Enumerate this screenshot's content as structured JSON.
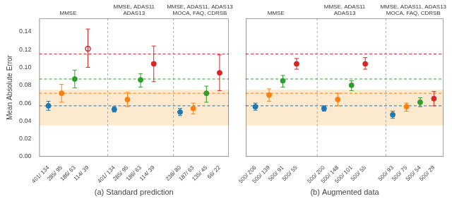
{
  "chart_data": [
    {
      "type": "scatter",
      "xlabel": "(a) Standard prediction",
      "ylabel": "Mean Absolute Error",
      "categories": [
        "401/ 134",
        "285/ 95",
        "186/ 63",
        "114/ 39",
        null,
        "401/ 134",
        "285/ 95",
        "186/ 63",
        "114/ 39",
        null,
        "238/ 80",
        "187/ 63",
        "135/ 45",
        "66/ 22"
      ],
      "group_labels": [
        "MMSE",
        "MMSE, ADAS11\nADAS13",
        "MMSE, ADAS11, ADAS13\nMOCA, FAQ, CDRSB"
      ],
      "series": [
        {
          "color": "#1f77b4",
          "marker": "circle",
          "values": [
            0.057,
            null,
            null,
            null,
            null,
            0.053,
            null,
            null,
            null,
            null,
            0.05,
            null,
            null,
            null
          ],
          "error_low": [
            0.005,
            null,
            null,
            null,
            null,
            0.003,
            null,
            null,
            null,
            null,
            0.004,
            null,
            null,
            null
          ],
          "error_high": [
            0.005,
            null,
            null,
            null,
            null,
            0.003,
            null,
            null,
            null,
            null,
            0.004,
            null,
            null,
            null
          ]
        },
        {
          "color": "#ff7f0e",
          "marker": "circle",
          "values": [
            null,
            0.071,
            null,
            null,
            null,
            null,
            0.064,
            null,
            null,
            null,
            null,
            0.054,
            null,
            null
          ],
          "error_low": [
            null,
            0.01,
            null,
            null,
            null,
            null,
            0.008,
            null,
            null,
            null,
            null,
            0.006,
            null,
            null
          ],
          "error_high": [
            null,
            0.01,
            null,
            null,
            null,
            null,
            0.008,
            null,
            null,
            null,
            null,
            0.006,
            null,
            null
          ]
        },
        {
          "color": "#2ca02c",
          "marker": "circle",
          "values": [
            null,
            null,
            0.087,
            null,
            null,
            null,
            null,
            0.086,
            null,
            null,
            null,
            null,
            0.071,
            null
          ],
          "error_low": [
            null,
            null,
            0.01,
            null,
            null,
            null,
            null,
            0.008,
            null,
            null,
            null,
            null,
            0.01,
            null
          ],
          "error_high": [
            null,
            null,
            0.01,
            null,
            null,
            null,
            null,
            0.007,
            null,
            null,
            null,
            null,
            0.008,
            null
          ]
        },
        {
          "color": "#d62728",
          "marker": "open_circle",
          "values": [
            null,
            null,
            null,
            0.121,
            null,
            null,
            null,
            null,
            null,
            null,
            null,
            null,
            null,
            null
          ],
          "error_low": [
            null,
            null,
            null,
            0.021,
            null,
            null,
            null,
            null,
            null,
            null,
            null,
            null,
            null,
            null
          ],
          "error_high": [
            null,
            null,
            null,
            0.022,
            null,
            null,
            null,
            null,
            null,
            null,
            null,
            null,
            null,
            null
          ]
        },
        {
          "color": "#d62728",
          "marker": "circle",
          "values": [
            null,
            null,
            null,
            null,
            null,
            null,
            null,
            null,
            0.104,
            null,
            null,
            null,
            null,
            0.094
          ],
          "error_low": [
            null,
            null,
            null,
            null,
            null,
            null,
            null,
            null,
            0.02,
            null,
            null,
            null,
            null,
            0.02
          ],
          "error_high": [
            null,
            null,
            null,
            null,
            null,
            null,
            null,
            null,
            0.02,
            null,
            null,
            null,
            null,
            0.02
          ]
        }
      ],
      "band": {
        "from": 0.035,
        "to": 0.075,
        "color": "#fde9ce"
      },
      "reference_lines": [
        {
          "value": 0.057,
          "color": "#1f77b4"
        },
        {
          "value": 0.071,
          "color": "#ff7f0e"
        },
        {
          "value": 0.087,
          "color": "#2ca02c"
        },
        {
          "value": 0.115,
          "color": "#d62728"
        }
      ],
      "ylim": [
        0.0,
        0.155
      ],
      "yticks": [
        {
          "value": 0.0,
          "label": "0.00"
        },
        0.02,
        0.04,
        0.06,
        0.08,
        {
          "value": 0.1,
          "label": "0.10"
        },
        0.12,
        0.14
      ],
      "grid": false
    },
    {
      "type": "scatter",
      "xlabel": "(b) Augmented data",
      "categories": [
        "500/ 206",
        "500/ 139",
        "500/ 91",
        "500/ 55",
        null,
        "500/ 200",
        "500/ 148",
        "500/ 101",
        "500/ 55",
        null,
        "500/ 93",
        "500/ 75",
        "500/ 54",
        "500/ 29"
      ],
      "group_labels": [
        "MMSE",
        "MMSE, ADAS11\nADAS13",
        "MMSE, ADAS11, ADAS13\nMOCA, FAQ, CDRSB"
      ],
      "series": [
        {
          "color": "#1f77b4",
          "marker": "circle",
          "values": [
            0.056,
            null,
            null,
            null,
            null,
            0.054,
            null,
            null,
            null,
            null,
            0.047,
            null,
            null,
            null
          ],
          "error_low": [
            0.004,
            null,
            null,
            null,
            null,
            0.003,
            null,
            null,
            null,
            null,
            0.004,
            null,
            null,
            null
          ],
          "error_high": [
            0.004,
            null,
            null,
            null,
            null,
            0.003,
            null,
            null,
            null,
            null,
            0.004,
            null,
            null,
            null
          ]
        },
        {
          "color": "#ff7f0e",
          "marker": "circle",
          "values": [
            null,
            0.069,
            null,
            null,
            null,
            null,
            0.064,
            null,
            null,
            null,
            null,
            0.056,
            null,
            null
          ],
          "error_low": [
            null,
            0.007,
            null,
            null,
            null,
            null,
            0.007,
            null,
            null,
            null,
            null,
            0.005,
            null,
            null
          ],
          "error_high": [
            null,
            0.007,
            null,
            null,
            null,
            null,
            0.007,
            null,
            null,
            null,
            null,
            0.004,
            null,
            null
          ]
        },
        {
          "color": "#2ca02c",
          "marker": "circle",
          "values": [
            null,
            null,
            0.085,
            null,
            null,
            null,
            null,
            0.08,
            null,
            null,
            null,
            null,
            0.061,
            null
          ],
          "error_low": [
            null,
            null,
            0.007,
            null,
            null,
            null,
            null,
            0.006,
            null,
            null,
            null,
            null,
            0.005,
            null
          ],
          "error_high": [
            null,
            null,
            0.006,
            null,
            null,
            null,
            null,
            0.005,
            null,
            null,
            null,
            null,
            0.005,
            null
          ]
        },
        {
          "color": "#d62728",
          "marker": "circle",
          "values": [
            null,
            null,
            null,
            0.104,
            null,
            null,
            null,
            null,
            0.104,
            null,
            null,
            null,
            null,
            0.065
          ],
          "error_low": [
            null,
            null,
            null,
            0.006,
            null,
            null,
            null,
            null,
            0.006,
            null,
            null,
            null,
            null,
            0.008
          ],
          "error_high": [
            null,
            null,
            null,
            0.006,
            null,
            null,
            null,
            null,
            0.007,
            null,
            null,
            null,
            null,
            0.008
          ]
        }
      ],
      "band": {
        "from": 0.035,
        "to": 0.075,
        "color": "#fde9ce"
      },
      "reference_lines": [
        {
          "value": 0.057,
          "color": "#1f77b4"
        },
        {
          "value": 0.071,
          "color": "#ff7f0e"
        },
        {
          "value": 0.087,
          "color": "#2ca02c"
        },
        {
          "value": 0.115,
          "color": "#d62728"
        }
      ],
      "ylim": [
        0.0,
        0.155
      ],
      "yticks": [
        0.0,
        0.02,
        0.04,
        0.06,
        0.08,
        0.1,
        0.12,
        0.14
      ],
      "tick_labels": "x",
      "grid": false
    }
  ]
}
